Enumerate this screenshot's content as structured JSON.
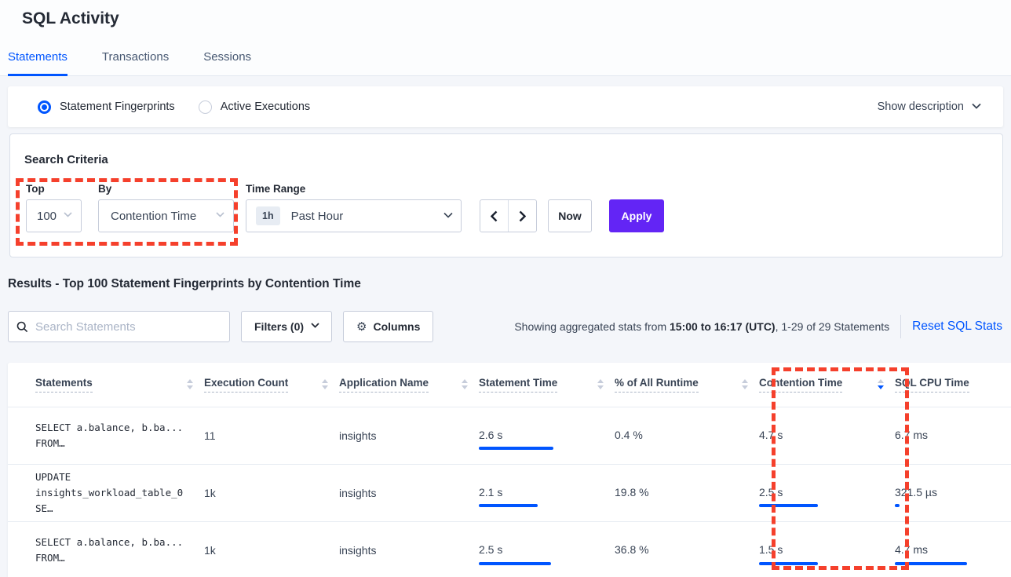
{
  "colors": {
    "accent_blue": "#0055ff",
    "apply_purple": "#6325f5",
    "annotation_red": "#f5402c",
    "bar_gray": "#c3c9dc"
  },
  "header": {
    "title": "SQL Activity",
    "tabs": [
      {
        "label": "Statements",
        "active": true
      },
      {
        "label": "Transactions",
        "active": false
      },
      {
        "label": "Sessions",
        "active": false
      }
    ]
  },
  "view_bar": {
    "options": [
      {
        "label": "Statement Fingerprints",
        "selected": true
      },
      {
        "label": "Active Executions",
        "selected": false
      }
    ],
    "show_description": "Show description"
  },
  "criteria": {
    "heading": "Search Criteria",
    "top_label": "Top",
    "top_value": "100",
    "by_label": "By",
    "by_value": "Contention Time",
    "time_label": "Time Range",
    "time_badge": "1h",
    "time_value": "Past Hour",
    "now": "Now",
    "apply": "Apply"
  },
  "results": {
    "heading": "Results - Top 100 Statement Fingerprints by Contention Time",
    "search_placeholder": "Search Statements",
    "filters": "Filters (0)",
    "columns": "Columns",
    "columns_icon": "⚙",
    "stats_prefix": "Showing aggregated stats from ",
    "stats_bold": "15:00 to 16:17 (UTC)",
    "stats_suffix": ", 1-29 of 29 Statements",
    "reset": "Reset SQL Stats"
  },
  "table": {
    "headers": [
      "Statements",
      "Execution Count",
      "Application Name",
      "Statement Time",
      "% of All Runtime",
      "Contention Time",
      "SQL CPU Time"
    ],
    "sorted_column": "Contention Time",
    "sort_direction": "desc",
    "rows": [
      {
        "statement": [
          "SELECT a.balance, b.ba...",
          "FROM…"
        ],
        "execution": {
          "v": "11",
          "bar": 2
        },
        "app": "insights",
        "stmt_time": {
          "v": "2.6 s",
          "g": 38,
          "b": 95
        },
        "runtime": {
          "v": "0.4 %",
          "g": 2,
          "b": 0
        },
        "contention": {
          "v": "4.7 s",
          "g": 55,
          "b": 0
        },
        "cpu": {
          "v": "6.7 ms",
          "g": 48,
          "b": 0
        }
      },
      {
        "statement": [
          "UPDATE",
          "insights_workload_table_0 SE…"
        ],
        "execution": {
          "v": "1k",
          "bar": 95
        },
        "app": "insights",
        "stmt_time": {
          "v": "2.1 s",
          "g": 32,
          "b": 75
        },
        "runtime": {
          "v": "19.8 %",
          "g": 72,
          "b": 0
        },
        "contention": {
          "v": "2.5 s",
          "g": 28,
          "b": 75
        },
        "cpu": {
          "v": "321.5 µs",
          "g": 2,
          "b": 6
        }
      },
      {
        "statement": [
          "SELECT a.balance, b.ba...",
          "FROM…"
        ],
        "execution": {
          "v": "1k",
          "bar": 95
        },
        "app": "insights",
        "stmt_time": {
          "v": "2.5 s",
          "g": 38,
          "b": 92
        },
        "runtime": {
          "v": "36.8 %",
          "g": 102,
          "b": 0
        },
        "contention": {
          "v": "1.5 s",
          "g": 20,
          "b": 75
        },
        "cpu": {
          "v": "4.7 ms",
          "g": 40,
          "b": 92
        }
      }
    ]
  }
}
